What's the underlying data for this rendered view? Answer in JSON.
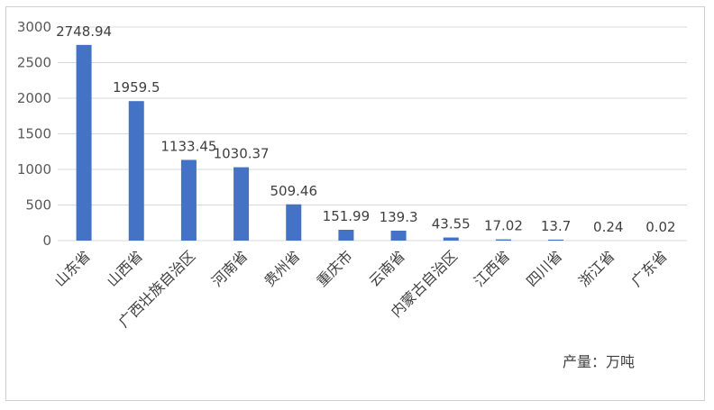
{
  "chart_data": {
    "type": "bar",
    "categories": [
      "山东省",
      "山西省",
      "广西壮族自治区",
      "河南省",
      "贵州省",
      "重庆市",
      "云南省",
      "内蒙古自治区",
      "江西省",
      "四川省",
      "浙江省",
      "广东省"
    ],
    "values": [
      2748.94,
      1959.5,
      1133.45,
      1030.37,
      509.46,
      151.99,
      139.3,
      43.55,
      17.02,
      13.7,
      0.24,
      0.02
    ],
    "data_labels": [
      "2748.94",
      "1959.5",
      "1133.45",
      "1030.37",
      "509.46",
      "151.99",
      "139.3",
      "43.55",
      "17.02",
      "13.7",
      "0.24",
      "0.02"
    ],
    "ylim": [
      0,
      3000
    ],
    "yticks": [
      0,
      500,
      1000,
      1500,
      2000,
      2500,
      3000
    ],
    "grid": true,
    "bar_color": "#4472C4",
    "note": "产量：万吨"
  }
}
